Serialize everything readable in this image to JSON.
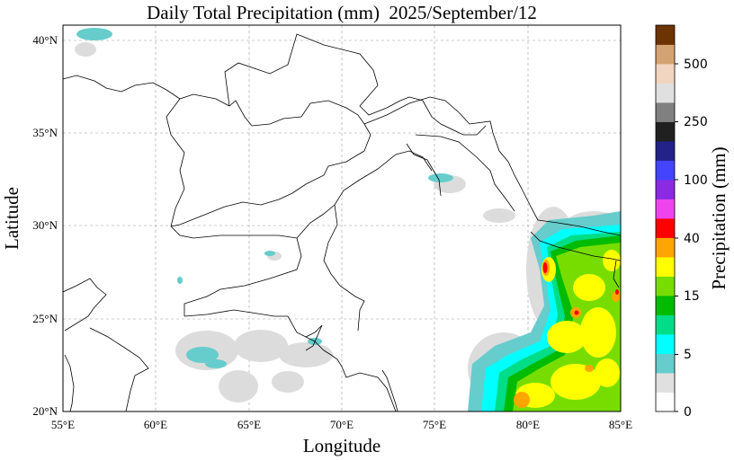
{
  "title": {
    "text": "Daily Total Precipitation (mm)  2025/September/12"
  },
  "axes": {
    "xlabel": "Longitude",
    "ylabel": "Latitude",
    "xticks": [
      "55°E",
      "60°E",
      "65°E",
      "70°E",
      "75°E",
      "80°E",
      "85°E"
    ],
    "yticks": [
      "20°N",
      "25°N",
      "30°N",
      "35°N",
      "40°N"
    ],
    "xlim": [
      55,
      85
    ],
    "ylim": [
      20,
      40.8
    ],
    "grid": true
  },
  "colorbar": {
    "label": "Precipitation (mm)",
    "ticks": [
      "0",
      "5",
      "15",
      "40",
      "100",
      "250",
      "500"
    ],
    "colors": [
      "#ffffff",
      "#e0e0e0",
      "#66cccc",
      "#00ffff",
      "#00dd88",
      "#00bb00",
      "#77dd00",
      "#ffff00",
      "#ffa500",
      "#ff0000",
      "#ee44ee",
      "#8a2be2",
      "#4444ff",
      "#222288",
      "#202020",
      "#808080",
      "#e0e0e0",
      "#f2d5c0",
      "#d4a373",
      "#6b3400"
    ]
  }
}
